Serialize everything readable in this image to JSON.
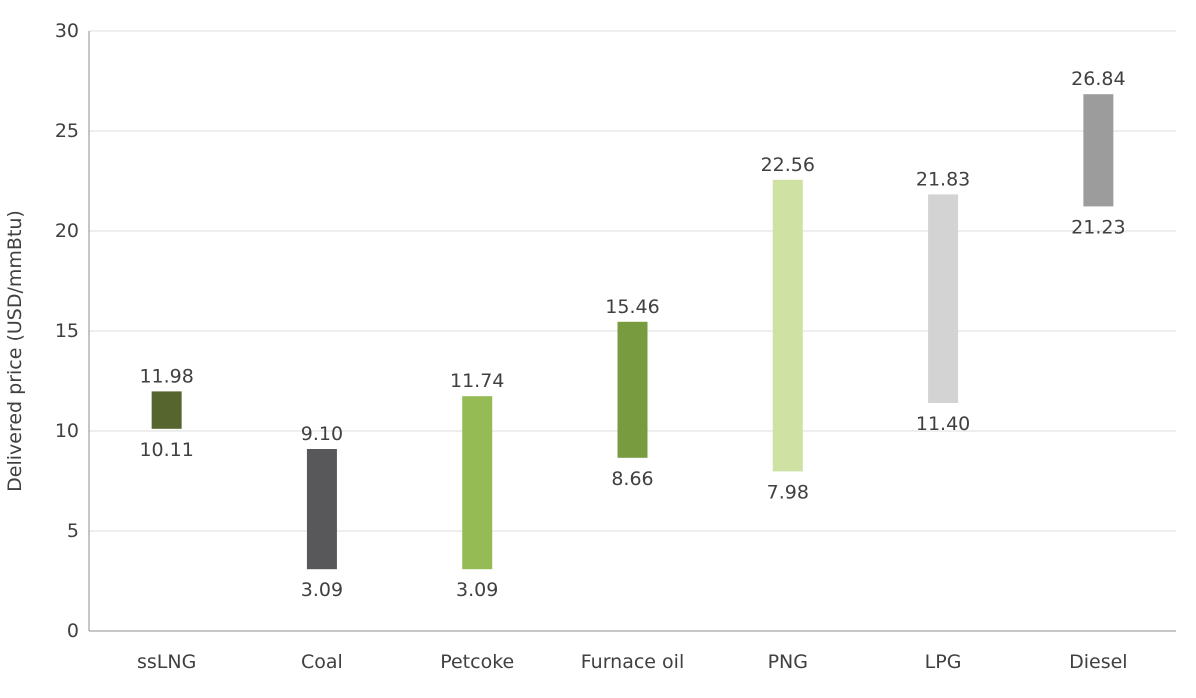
{
  "chart_data": {
    "type": "bar",
    "subtype": "floating-range",
    "title": "",
    "xlabel": "",
    "ylabel": "Delivered price (USD/mmBtu)",
    "ylim": [
      0,
      30
    ],
    "yticks": [
      0,
      5,
      10,
      15,
      20,
      25,
      30
    ],
    "grid": true,
    "categories": [
      "ssLNG",
      "Coal",
      "Petcoke",
      "Furnace oil",
      "PNG",
      "LPG",
      "Diesel"
    ],
    "low": [
      10.11,
      3.09,
      3.09,
      8.66,
      7.98,
      11.4,
      21.23
    ],
    "high": [
      11.98,
      9.1,
      11.74,
      15.46,
      22.56,
      21.83,
      26.84
    ],
    "low_labels": [
      "10.11",
      "3.09",
      "3.09",
      "8.66",
      "7.98",
      "11.40",
      "21.23"
    ],
    "high_labels": [
      "11.98",
      "9.10",
      "11.74",
      "15.46",
      "22.56",
      "21.83",
      "26.84"
    ],
    "colors": [
      "#56652e",
      "#58585a",
      "#94bb54",
      "#789b3f",
      "#cfe2a4",
      "#d3d3d3",
      "#9c9c9c"
    ]
  }
}
